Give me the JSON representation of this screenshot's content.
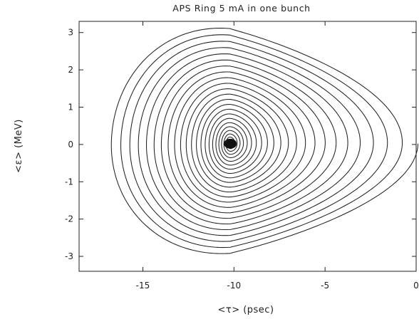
{
  "chart_data": {
    "type": "line",
    "title": "APS Ring 5 mA in one bunch",
    "xlabel": "<τ> (psec)",
    "ylabel": "<ε> (MeV)",
    "xlim": [
      -18.5,
      0
    ],
    "ylim": [
      -3.4,
      3.3
    ],
    "xticks": [
      -15,
      -10,
      -5,
      0
    ],
    "xtick_labels": [
      "-15",
      "-10",
      "-5",
      "0"
    ],
    "yticks": [
      3,
      2,
      1,
      0,
      -1,
      -2,
      -3
    ],
    "ytick_labels": [
      "3",
      "2",
      "1",
      "0",
      "-1",
      "-2",
      "-3"
    ],
    "grid": false,
    "series": [
      {
        "description_free": true,
        "center": [
          -10.2,
          0.02
        ],
        "start_point": [
          0.1,
          0.0
        ],
        "x_extent": [
          -17.0,
          0.1
        ],
        "y_extent": [
          -3.2,
          3.0
        ],
        "spiral_turns": 24
      }
    ]
  }
}
